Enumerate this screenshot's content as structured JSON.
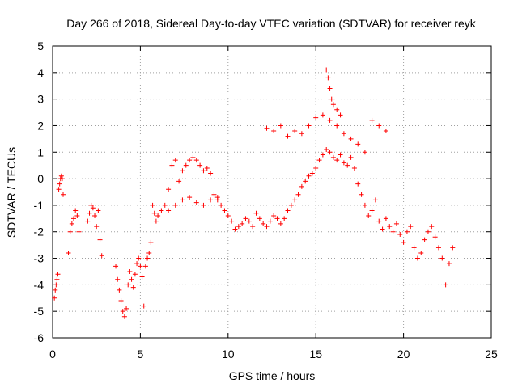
{
  "chart_data": {
    "type": "scatter",
    "title": "Day 266 of 2018, Sidereal Day-to-day VTEC variation (SDTVAR) for receiver reyk",
    "xlabel": "GPS time / hours",
    "ylabel": "SDTVAR / TECUs",
    "xlim": [
      0,
      25
    ],
    "ylim": [
      -6,
      5
    ],
    "xticks": [
      "0",
      "5",
      "10",
      "15",
      "20",
      "25"
    ],
    "yticks": [
      "-6",
      "-5",
      "-4",
      "-3",
      "-2",
      "-1",
      "0",
      "1",
      "2",
      "3",
      "4",
      "5"
    ],
    "grid": true,
    "marker": "+",
    "color": "#ff0000",
    "series": [
      {
        "name": "SDTVAR",
        "x": [
          0.1,
          0.15,
          0.2,
          0.25,
          0.3,
          0.35,
          0.4,
          0.45,
          0.5,
          0.55,
          0.6,
          0.9,
          1.0,
          1.1,
          1.2,
          1.3,
          1.4,
          1.5,
          2.0,
          2.1,
          2.2,
          2.3,
          2.4,
          2.5,
          2.6,
          2.7,
          2.8,
          3.6,
          3.7,
          3.8,
          3.9,
          4.0,
          4.1,
          4.2,
          4.3,
          4.4,
          4.5,
          4.6,
          4.7,
          4.8,
          4.9,
          5.0,
          5.1,
          5.2,
          5.3,
          5.4,
          5.5,
          5.6,
          5.7,
          5.8,
          5.9,
          6.0,
          6.2,
          6.4,
          6.6,
          6.8,
          7.0,
          7.2,
          7.4,
          7.6,
          7.8,
          8.0,
          8.2,
          8.4,
          8.6,
          8.8,
          9.0,
          9.2,
          9.4,
          9.6,
          9.8,
          10.0,
          10.2,
          10.4,
          10.6,
          10.8,
          11.0,
          11.2,
          11.4,
          11.6,
          11.8,
          12.0,
          12.2,
          12.4,
          12.6,
          12.8,
          13.0,
          13.2,
          13.4,
          13.6,
          13.8,
          14.0,
          14.2,
          14.4,
          14.6,
          14.8,
          15.0,
          15.2,
          15.4,
          15.6,
          15.8,
          16.0,
          16.2,
          16.4,
          16.6,
          16.8,
          17.0,
          17.2,
          17.4,
          17.6,
          17.8,
          18.0,
          18.2,
          18.4,
          18.6,
          18.8,
          19.0,
          19.2,
          19.4,
          19.6,
          19.8,
          20.0,
          20.2,
          20.4,
          20.6,
          20.8,
          21.0,
          21.2,
          21.4,
          21.6,
          21.8,
          22.0,
          22.2,
          22.4,
          22.6,
          22.8,
          12.2,
          12.6,
          13.0,
          13.4,
          13.8,
          14.2,
          14.6,
          15.0,
          15.4,
          15.8,
          16.2,
          16.6,
          17.0,
          17.4,
          17.8,
          18.2,
          18.6,
          19.0,
          6.6,
          7.0,
          7.4,
          7.8,
          8.2,
          8.6,
          9.0,
          9.4,
          15.6,
          15.7,
          15.8,
          15.9,
          16.0,
          16.2,
          16.4
        ],
        "y": [
          -4.5,
          -4.2,
          -4.0,
          -3.8,
          -3.6,
          -0.4,
          -0.2,
          0.0,
          0.1,
          0.0,
          -0.6,
          -2.8,
          -2.0,
          -1.7,
          -1.5,
          -1.2,
          -1.4,
          -2.0,
          -1.6,
          -1.3,
          -1.0,
          -1.1,
          -1.4,
          -1.8,
          -1.2,
          -2.3,
          -2.9,
          -3.3,
          -3.8,
          -4.2,
          -4.6,
          -5.0,
          -5.2,
          -4.9,
          -4.0,
          -3.5,
          -3.8,
          -4.1,
          -3.6,
          -3.2,
          -3.0,
          -3.3,
          -3.7,
          -4.8,
          -3.3,
          -3.0,
          -2.8,
          -2.4,
          -1.0,
          -1.3,
          -1.6,
          -1.4,
          -1.2,
          -1.0,
          -0.4,
          0.5,
          0.7,
          -0.1,
          0.3,
          0.5,
          0.7,
          0.8,
          0.7,
          0.5,
          0.3,
          0.4,
          0.2,
          -0.6,
          -0.8,
          -1.0,
          -1.2,
          -1.4,
          -1.6,
          -1.9,
          -1.8,
          -1.7,
          -1.5,
          -1.6,
          -1.8,
          -1.3,
          -1.5,
          -1.7,
          -1.8,
          -1.6,
          -1.4,
          -1.5,
          -1.7,
          -1.5,
          -1.2,
          -1.0,
          -0.8,
          -0.6,
          -0.3,
          -0.1,
          0.1,
          0.2,
          0.4,
          0.7,
          0.9,
          1.1,
          1.0,
          0.8,
          0.7,
          0.9,
          0.6,
          0.5,
          0.8,
          0.4,
          -0.2,
          -0.6,
          -1.0,
          -1.4,
          -1.2,
          -0.8,
          -1.6,
          -1.9,
          -1.5,
          -1.8,
          -2.0,
          -1.7,
          -2.1,
          -2.4,
          -2.0,
          -1.8,
          -2.6,
          -3.0,
          -2.8,
          -2.3,
          -2.0,
          -1.8,
          -2.2,
          -2.6,
          -3.0,
          -4.0,
          -3.2,
          -2.6,
          1.9,
          1.8,
          2.0,
          1.6,
          1.8,
          1.7,
          2.0,
          2.3,
          2.4,
          2.2,
          2.0,
          1.7,
          1.5,
          1.3,
          1.0,
          2.2,
          2.0,
          1.8,
          -1.2,
          -1.0,
          -0.8,
          -0.7,
          -0.9,
          -1.0,
          -0.8,
          -0.7,
          4.1,
          3.8,
          3.4,
          3.0,
          2.8,
          2.6,
          2.4
        ]
      }
    ]
  }
}
